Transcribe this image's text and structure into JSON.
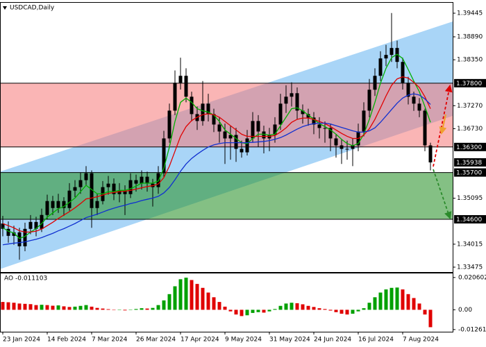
{
  "chart_data": [
    {
      "type": "candlestick",
      "title": "USDCAD,Daily",
      "color": "#000000",
      "categories": [
        "23 Jan 2024",
        null,
        null,
        null,
        null,
        null,
        null,
        null,
        "14 Feb 2024",
        null,
        null,
        null,
        null,
        null,
        null,
        null,
        "7 Mar 2024",
        null,
        null,
        null,
        null,
        null,
        null,
        null,
        "26 Mar 2024",
        null,
        null,
        null,
        null,
        null,
        null,
        null,
        "17 Apr 2024",
        null,
        null,
        null,
        null,
        null,
        null,
        null,
        "9 May 2024",
        null,
        null,
        null,
        null,
        null,
        null,
        null,
        "31 May 2024",
        null,
        null,
        null,
        null,
        null,
        null,
        null,
        "24 Jun 2024",
        null,
        null,
        null,
        null,
        null,
        null,
        null,
        "16 Jul 2024",
        null,
        null,
        null,
        null,
        null,
        null,
        null,
        "7 Aug 2024",
        null,
        null,
        null,
        null,
        null
      ],
      "open": [
        1.345,
        1.34375,
        1.34211,
        1.34293,
        1.33966,
        1.34375,
        1.34538,
        1.34375,
        1.34702,
        1.35029,
        1.34865,
        1.35029,
        1.34865,
        1.35274,
        1.35356,
        1.3552,
        1.35683,
        1.34865,
        1.35029,
        1.35356,
        1.35438,
        1.35192,
        1.35274,
        1.35192,
        1.3552,
        1.35438,
        1.35601,
        1.35438,
        1.35356,
        1.35683,
        1.36501,
        1.37155,
        1.37809,
        1.37973,
        1.37482,
        1.37073,
        1.3691,
        1.37319,
        1.37073,
        1.36828,
        1.36664,
        1.36501,
        1.36583,
        1.36256,
        1.36174,
        1.36501,
        1.3691,
        1.36664,
        1.36501,
        1.36583,
        1.36828,
        1.37319,
        1.37482,
        1.37564,
        1.37155,
        1.37073,
        1.36992,
        1.36828,
        1.36746,
        1.36746,
        1.36501,
        1.36337,
        1.36256,
        1.36256,
        1.36337,
        1.36664,
        1.37155,
        1.37646,
        1.37973,
        1.38382,
        1.38464,
        1.38627,
        1.383,
        1.37809,
        1.37482,
        1.37319,
        1.37155,
        1.36337
      ],
      "high": [
        1.3468,
        1.3455,
        1.3445,
        1.344,
        1.3452,
        1.347,
        1.3466,
        1.3485,
        1.3518,
        1.3515,
        1.352,
        1.3512,
        1.3545,
        1.3552,
        1.357,
        1.3585,
        1.3575,
        1.352,
        1.355,
        1.3562,
        1.3556,
        1.3545,
        1.354,
        1.3568,
        1.3565,
        1.3575,
        1.3572,
        1.3555,
        1.3585,
        1.3668,
        1.3732,
        1.381,
        1.384,
        1.3815,
        1.376,
        1.3725,
        1.3785,
        1.3755,
        1.372,
        1.37,
        1.3685,
        1.368,
        1.3675,
        1.3645,
        1.367,
        1.3712,
        1.3705,
        1.368,
        1.3675,
        1.37,
        1.3755,
        1.3775,
        1.3782,
        1.377,
        1.373,
        1.372,
        1.3712,
        1.37,
        1.369,
        1.3685,
        1.366,
        1.3648,
        1.3645,
        1.365,
        1.3685,
        1.3735,
        1.379,
        1.3815,
        1.3855,
        1.387,
        1.3945,
        1.388,
        1.384,
        1.3795,
        1.376,
        1.3745,
        1.372,
        1.364
      ],
      "low": [
        1.342,
        1.3405,
        1.34,
        1.3365,
        1.3385,
        1.3425,
        1.342,
        1.343,
        1.346,
        1.347,
        1.3475,
        1.3468,
        1.348,
        1.3512,
        1.352,
        1.354,
        1.344,
        1.347,
        1.3495,
        1.3518,
        1.3505,
        1.35,
        1.347,
        1.351,
        1.3525,
        1.353,
        1.3525,
        1.349,
        1.352,
        1.356,
        1.364,
        1.3705,
        1.3765,
        1.3735,
        1.369,
        1.367,
        1.368,
        1.369,
        1.3665,
        1.364,
        1.359,
        1.36,
        1.3595,
        1.3605,
        1.361,
        1.364,
        1.363,
        1.3615,
        1.362,
        1.364,
        1.367,
        1.371,
        1.3725,
        1.3695,
        1.3685,
        1.368,
        1.366,
        1.365,
        1.364,
        1.362,
        1.3605,
        1.359,
        1.36,
        1.3585,
        1.362,
        1.3655,
        1.37,
        1.375,
        1.3785,
        1.382,
        1.383,
        1.3815,
        1.3765,
        1.373,
        1.3715,
        1.37,
        1.362,
        1.3575
      ],
      "close": [
        1.34375,
        1.34211,
        1.34293,
        1.33966,
        1.34375,
        1.34538,
        1.34375,
        1.34702,
        1.35029,
        1.34865,
        1.35029,
        1.34865,
        1.35274,
        1.35356,
        1.3552,
        1.35683,
        1.34865,
        1.35029,
        1.35356,
        1.35438,
        1.35192,
        1.35274,
        1.35192,
        1.3552,
        1.35438,
        1.35601,
        1.35438,
        1.35356,
        1.35683,
        1.36501,
        1.37155,
        1.37809,
        1.37973,
        1.37482,
        1.37073,
        1.3691,
        1.37319,
        1.37073,
        1.36828,
        1.36664,
        1.36501,
        1.36583,
        1.36256,
        1.36174,
        1.36501,
        1.3691,
        1.36664,
        1.36501,
        1.36583,
        1.36828,
        1.37319,
        1.37482,
        1.37564,
        1.37155,
        1.37073,
        1.36992,
        1.36828,
        1.36746,
        1.36746,
        1.36501,
        1.36337,
        1.36256,
        1.36256,
        1.36337,
        1.36664,
        1.37155,
        1.37646,
        1.37973,
        1.38382,
        1.38464,
        1.38627,
        1.383,
        1.37809,
        1.37482,
        1.37319,
        1.37155,
        1.36337,
        1.35938
      ],
      "series": [
        {
          "color": "#00b000",
          "values": [
            1.344,
            1.3432,
            1.3428,
            1.3415,
            1.342,
            1.343,
            1.3438,
            1.345,
            1.3465,
            1.3475,
            1.3485,
            1.349,
            1.35,
            1.351,
            1.3525,
            1.354,
            1.353,
            1.352,
            1.352,
            1.3525,
            1.3525,
            1.3528,
            1.3528,
            1.3532,
            1.3538,
            1.3545,
            1.3545,
            1.3545,
            1.355,
            1.358,
            1.363,
            1.369,
            1.3735,
            1.3745,
            1.3735,
            1.372,
            1.3715,
            1.3712,
            1.3705,
            1.369,
            1.367,
            1.366,
            1.365,
            1.364,
            1.3638,
            1.365,
            1.366,
            1.366,
            1.3658,
            1.366,
            1.368,
            1.37,
            1.372,
            1.3722,
            1.3715,
            1.3705,
            1.3695,
            1.3685,
            1.3678,
            1.367,
            1.366,
            1.3648,
            1.3638,
            1.3633,
            1.3638,
            1.366,
            1.3695,
            1.3735,
            1.378,
            1.3815,
            1.384,
            1.3848,
            1.3838,
            1.3812,
            1.3785,
            1.376,
            1.3725,
            1.3688
          ]
        },
        {
          "color": "#e00000",
          "values": [
            1.345,
            1.3445,
            1.344,
            1.3433,
            1.343,
            1.343,
            1.3432,
            1.3437,
            1.3445,
            1.3453,
            1.3462,
            1.347,
            1.3478,
            1.3487,
            1.3497,
            1.3508,
            1.351,
            1.3513,
            1.3517,
            1.3521,
            1.3523,
            1.3525,
            1.3526,
            1.3528,
            1.3531,
            1.3534,
            1.3537,
            1.3539,
            1.3543,
            1.3558,
            1.3585,
            1.362,
            1.3655,
            1.3678,
            1.3692,
            1.37,
            1.3706,
            1.3708,
            1.3706,
            1.37,
            1.369,
            1.368,
            1.367,
            1.366,
            1.3655,
            1.3655,
            1.3655,
            1.3655,
            1.3655,
            1.3657,
            1.3665,
            1.3675,
            1.3688,
            1.3695,
            1.3698,
            1.3698,
            1.3695,
            1.369,
            1.3685,
            1.3678,
            1.367,
            1.3662,
            1.3655,
            1.365,
            1.365,
            1.3658,
            1.3673,
            1.3695,
            1.3722,
            1.375,
            1.3775,
            1.379,
            1.3795,
            1.3792,
            1.3782,
            1.377,
            1.3748,
            1.372
          ]
        },
        {
          "color": "#1030d0",
          "values": [
            1.34,
            1.3402,
            1.3404,
            1.3405,
            1.3407,
            1.341,
            1.3413,
            1.3417,
            1.3422,
            1.3427,
            1.3433,
            1.3438,
            1.3444,
            1.345,
            1.3457,
            1.3464,
            1.3468,
            1.3472,
            1.3477,
            1.3482,
            1.3486,
            1.349,
            1.3493,
            1.3497,
            1.35,
            1.3504,
            1.3507,
            1.351,
            1.3514,
            1.3522,
            1.3535,
            1.3553,
            1.3573,
            1.359,
            1.3603,
            1.3613,
            1.3622,
            1.363,
            1.3635,
            1.3638,
            1.364,
            1.364,
            1.364,
            1.364,
            1.364,
            1.3641,
            1.3642,
            1.3643,
            1.3645,
            1.3648,
            1.3652,
            1.3658,
            1.3665,
            1.3672,
            1.3678,
            1.3682,
            1.3685,
            1.3686,
            1.3686,
            1.3684,
            1.368,
            1.3676,
            1.3672,
            1.3668,
            1.3665,
            1.3665,
            1.3668,
            1.3675,
            1.3688,
            1.3703,
            1.3718,
            1.3733,
            1.3745,
            1.3752,
            1.3755,
            1.3752,
            1.3743,
            1.373
          ]
        }
      ],
      "ylim": [
        1.3336,
        1.3969
      ],
      "yticks": [
        1.39445,
        {
          "value": 1.3889,
          "label": "1.38890"
        },
        {
          "value": 1.3835,
          "label": "1.38350"
        },
        {
          "value": 1.3727,
          "label": "1.37270"
        },
        {
          "value": 1.3673,
          "label": "1.36730"
        },
        1.35095,
        1.34015,
        1.33475
      ],
      "levels": [
        {
          "value": 1.378,
          "label": "1.37800"
        },
        {
          "value": 1.363,
          "label": "1.36300"
        },
        {
          "value": 1.357,
          "label": "1.35700"
        },
        {
          "value": 1.346,
          "label": "1.34600"
        }
      ],
      "zones": [
        {
          "from": 1.363,
          "to": 1.378,
          "color": "rgba(245,120,120,0.55)"
        },
        {
          "from": 1.346,
          "to": 1.357,
          "color": "rgba(50,150,50,0.6)"
        }
      ],
      "channel": {
        "upper": [
          1.3572,
          1.3925
        ],
        "lower": [
          1.3343,
          1.3703
        ],
        "color": "#a9d5f7"
      }
    },
    {
      "type": "histogram",
      "title": "AO",
      "up_color": "#00a000",
      "down_color": "#e00000",
      "values": [
        0.005,
        0.0048,
        0.0045,
        0.004,
        0.0038,
        0.0036,
        0.003,
        0.0032,
        0.003,
        0.0026,
        0.0028,
        0.0022,
        0.0018,
        0.002,
        0.0025,
        0.003,
        0.002,
        0.0012,
        0.0008,
        0.0004,
        -0.0002,
        0.0002,
        -0.0004,
        0.0002,
        0.0005,
        0.001,
        0.0008,
        0.0012,
        0.003,
        0.006,
        0.01,
        0.015,
        0.0195,
        0.0205,
        0.019,
        0.0165,
        0.014,
        0.011,
        0.008,
        0.005,
        0.002,
        -0.001,
        -0.003,
        -0.004,
        -0.0035,
        -0.002,
        -0.0015,
        -0.0018,
        -0.001,
        0.0005,
        0.0025,
        0.004,
        0.0045,
        0.0042,
        0.0035,
        0.0025,
        0.0018,
        0.001,
        0.0005,
        -0.0005,
        -0.0015,
        -0.0025,
        -0.003,
        -0.0025,
        -0.001,
        0.001,
        0.0045,
        0.008,
        0.011,
        0.013,
        0.014,
        0.0142,
        0.013,
        0.01,
        0.0075,
        0.004,
        -0.003,
        -0.011103
      ],
      "ylim": [
        -0.014,
        0.0232
      ],
      "yticks": [
        0.020602,
        {
          "value": 0,
          "label": "0.00"
        },
        -0.012614
      ]
    }
  ]
}
